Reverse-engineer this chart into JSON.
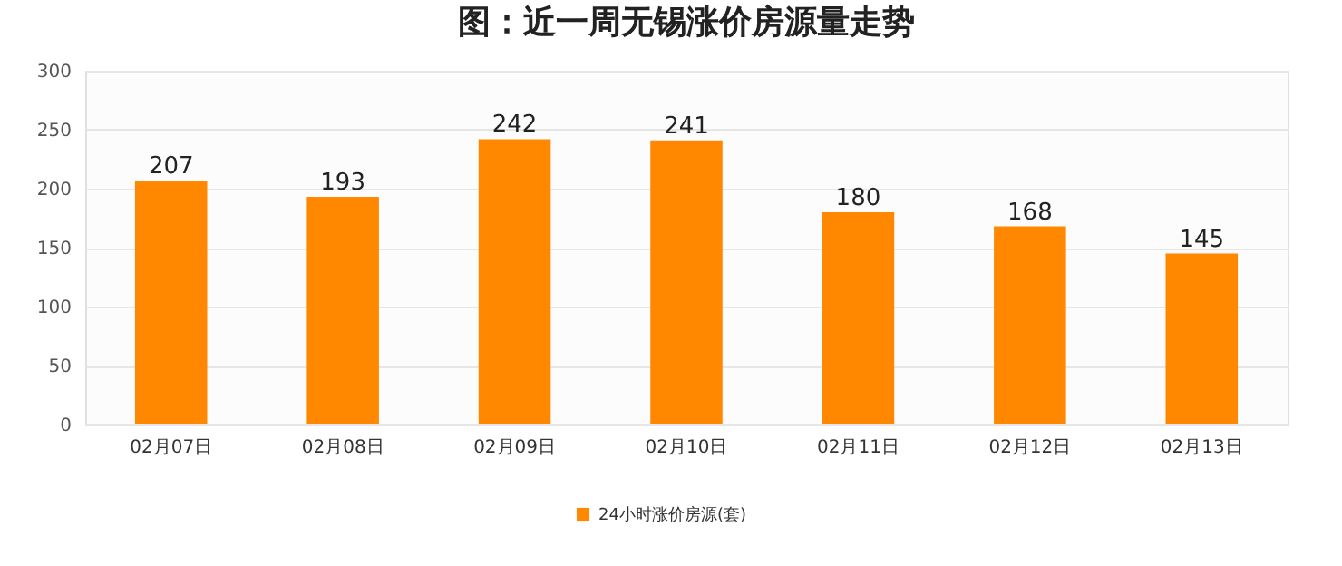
{
  "chart_data": {
    "type": "bar",
    "title": "图：近一周无锡涨价房源量走势",
    "categories": [
      "02月07日",
      "02月08日",
      "02月09日",
      "02月10日",
      "02月11日",
      "02月12日",
      "02月13日"
    ],
    "series": [
      {
        "name": "24小时涨价房源(套)",
        "color": "#ff8800",
        "values": [
          207,
          193,
          242,
          241,
          180,
          168,
          145
        ]
      }
    ],
    "ylim": [
      0,
      300
    ],
    "yticks": [
      0,
      50,
      100,
      150,
      200,
      250,
      300
    ],
    "grid": "y",
    "legend": "bottom",
    "data_labels": true
  }
}
